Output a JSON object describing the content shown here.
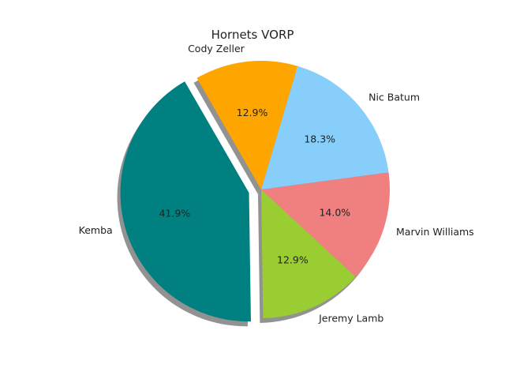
{
  "chart_data": {
    "type": "pie",
    "title": "Hornets VORP",
    "slices": [
      {
        "label": "Kemba",
        "value": 41.9,
        "pct_label": "41.9%",
        "color": "#008080",
        "exploded": true
      },
      {
        "label": "Jeremy Lamb",
        "value": 12.9,
        "pct_label": "12.9%",
        "color": "#9acd32",
        "exploded": false
      },
      {
        "label": "Marvin Williams",
        "value": 14.0,
        "pct_label": "14.0%",
        "color": "#f08080",
        "exploded": false
      },
      {
        "label": "Nic Batum",
        "value": 18.3,
        "pct_label": "18.3%",
        "color": "#87cefa",
        "exploded": false
      },
      {
        "label": "Cody Zeller",
        "value": 12.9,
        "pct_label": "12.9%",
        "color": "#ffa500",
        "exploded": false
      }
    ],
    "start_angle_deg": 120,
    "direction": "counterclockwise",
    "shadow": true
  }
}
